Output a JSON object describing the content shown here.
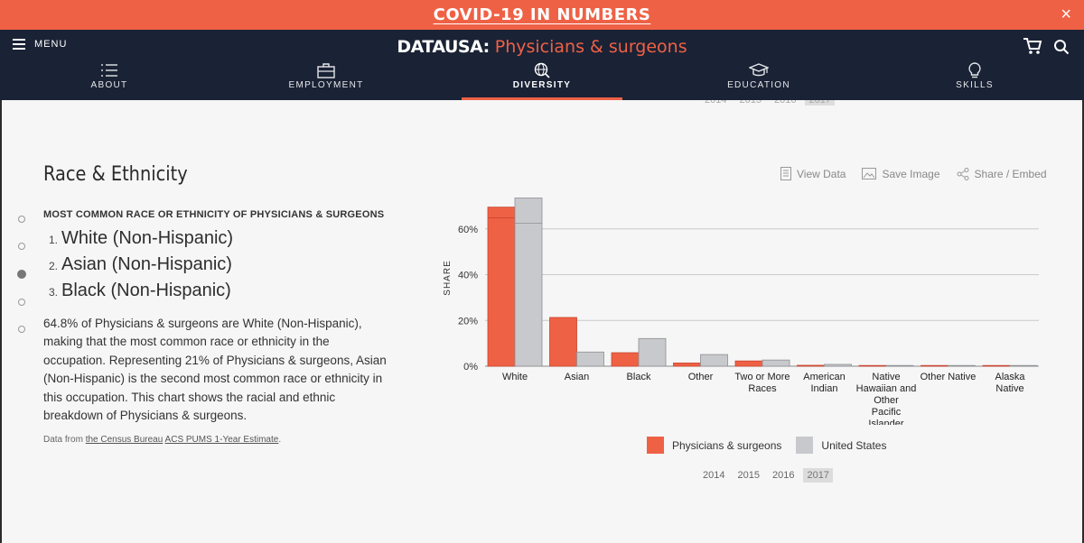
{
  "banner": {
    "title": "COVID-19 IN NUMBERS",
    "close": "×"
  },
  "nav": {
    "menu_label": "MENU",
    "logo": "DATAUSA:",
    "title": "Physicians & surgeons",
    "tabs": [
      {
        "label": "ABOUT",
        "icon": "list-icon"
      },
      {
        "label": "EMPLOYMENT",
        "icon": "briefcase-icon"
      },
      {
        "label": "DIVERSITY",
        "icon": "globe-search-icon",
        "active": true
      },
      {
        "label": "EDUCATION",
        "icon": "graduation-cap-icon"
      },
      {
        "label": "SKILLS",
        "icon": "lightbulb-icon"
      }
    ]
  },
  "section": {
    "title": "Race & Ethnicity",
    "tools": {
      "view_data": "View Data",
      "save_image": "Save Image",
      "share": "Share / Embed"
    },
    "subtitle": "MOST COMMON RACE OR ETHNICITY OF PHYSICIANS & SURGEONS",
    "ranking": [
      {
        "num": "1.",
        "text": "White (Non-Hispanic)"
      },
      {
        "num": "2.",
        "text": "Asian (Non-Hispanic)"
      },
      {
        "num": "3.",
        "text": "Black (Non-Hispanic)"
      }
    ],
    "paragraph": "64.8% of Physicians & surgeons are White (Non-Hispanic), making that the most common race or ethnicity in the occupation. Representing 21% of Physicians & surgeons, Asian (Non-Hispanic) is the second most common race or ethnicity in this occupation. This chart shows the racial and ethnic breakdown of Physicians & surgeons.",
    "source": {
      "prefix": "Data from ",
      "org": "the Census Bureau",
      "dataset": "ACS PUMS 1-Year Estimate",
      "suffix": "."
    },
    "years": [
      "2014",
      "2015",
      "2016",
      "2017"
    ],
    "selected_year": "2017"
  },
  "colors": {
    "accent": "#ef6145",
    "nav": "#1a2235",
    "gray": "#c8c9cd"
  },
  "chart_data": {
    "type": "bar",
    "ylabel": "SHARE",
    "yticks": [
      "0%",
      "20%",
      "40%",
      "60%"
    ],
    "ylim": [
      0,
      80
    ],
    "grid": true,
    "legend": "bottom",
    "categories": [
      "White",
      "Asian",
      "Black",
      "Other",
      "Two or More Races",
      "American Indian",
      "Native Hawaiian and Other Pacific Islander",
      "Other Native",
      "Alaska Native"
    ],
    "series": [
      {
        "name": "Physicians & surgeons",
        "color": "#ef6145",
        "values": [
          69.5,
          21.3,
          5.9,
          1.4,
          2.3,
          0.4,
          0.1,
          0.05,
          0.05
        ],
        "inner": [
          64.8,
          null,
          null,
          null,
          null,
          null,
          null,
          null,
          null
        ]
      },
      {
        "name": "United States",
        "color": "#c8c9cd",
        "values": [
          73.5,
          6.2,
          12.1,
          5.1,
          2.7,
          0.8,
          0.3,
          0.1,
          0.1
        ],
        "inner": [
          62.5,
          null,
          null,
          null,
          null,
          null,
          null,
          null,
          null
        ]
      }
    ]
  }
}
